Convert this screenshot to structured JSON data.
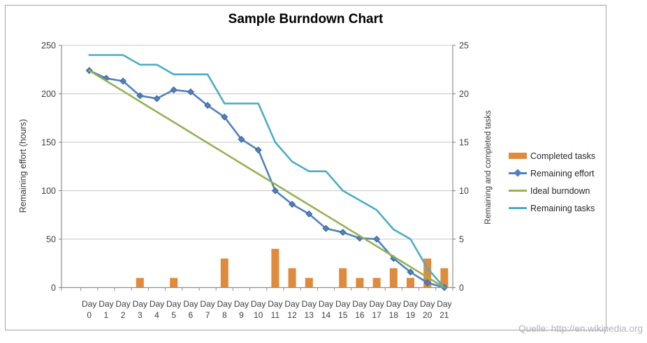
{
  "title": "Sample Burndown Chart",
  "source": "Quelle: http://en.wikipedia.org",
  "chart_data": {
    "type": "combo",
    "title": "Sample Burndown Chart",
    "x_prefix": "Day",
    "categories": [
      "0",
      "1",
      "2",
      "3",
      "4",
      "5",
      "6",
      "7",
      "8",
      "9",
      "10",
      "11",
      "12",
      "13",
      "14",
      "15",
      "16",
      "17",
      "18",
      "19",
      "20",
      "21"
    ],
    "series": [
      {
        "name": "Completed tasks",
        "type": "bar",
        "axis": "right",
        "color": "#E08A3C",
        "values": [
          0,
          0,
          0,
          1,
          0,
          1,
          0,
          0,
          3,
          0,
          0,
          4,
          2,
          1,
          0,
          2,
          1,
          1,
          2,
          1,
          3,
          2
        ]
      },
      {
        "name": "Remaining effort",
        "type": "line",
        "marker": "diamond",
        "axis": "left",
        "color": "#4F81BD",
        "marker_stroke": "#38618F",
        "values": [
          224,
          216,
          213,
          198,
          195,
          204,
          202,
          188,
          176,
          153,
          142,
          100,
          86,
          76,
          61,
          57,
          51,
          50,
          30,
          16,
          5,
          0
        ]
      },
      {
        "name": "Ideal burndown",
        "type": "line",
        "axis": "left",
        "color": "#94B253",
        "values": [
          224,
          213.3,
          202.7,
          192,
          181.3,
          170.7,
          160,
          149.3,
          138.7,
          128,
          117.3,
          106.7,
          96,
          85.3,
          74.7,
          64,
          53.3,
          42.7,
          32,
          21.3,
          10.7,
          0
        ]
      },
      {
        "name": "Remaining tasks",
        "type": "line",
        "axis": "right",
        "color": "#4BACC6",
        "values": [
          24,
          24,
          24,
          23,
          23,
          22,
          22,
          22,
          19,
          19,
          19,
          15,
          13,
          12,
          12,
          10,
          9,
          8,
          6,
          5,
          2,
          0
        ]
      }
    ],
    "left_axis": {
      "label": "Remaining effort (hours)",
      "min": 0,
      "max": 250,
      "step": 50,
      "ticks": [
        "0",
        "50",
        "100",
        "150",
        "200",
        "250"
      ]
    },
    "right_axis": {
      "label": "Remaining and  completed tasks",
      "min": 0,
      "max": 25,
      "step": 5,
      "ticks": [
        "0",
        "5",
        "10",
        "15",
        "20",
        "25"
      ]
    },
    "legend_position": "right",
    "grid": true
  },
  "colors": {
    "bar_orange": "#E08A3C",
    "effort_blue": "#4F81BD",
    "ideal_green": "#94B253",
    "tasks_teal": "#4BACC6",
    "gridline": "#C6C6C6",
    "axis_line": "#8E8E8E",
    "tick_text": "#3F3F3F",
    "border": "#A3A3A3",
    "source_text": "#B2B2C2"
  }
}
